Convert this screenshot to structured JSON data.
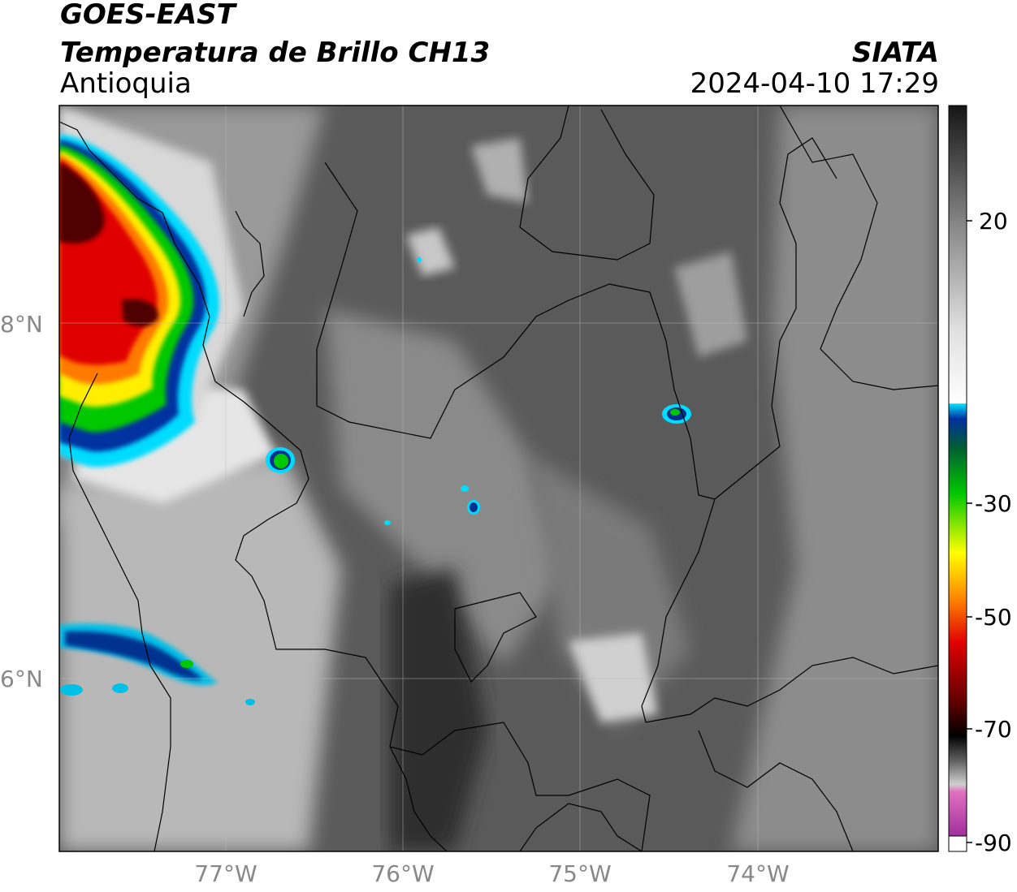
{
  "header": {
    "satellite": "GOES-EAST",
    "product": "Temperatura de Brillo CH13",
    "region": "Antioquia",
    "agency": "SIATA",
    "datetime": "2024-04-10 17:29"
  },
  "map": {
    "lat_labels": [
      "8°N",
      "6°N"
    ],
    "lon_labels": [
      "77°W",
      "76°W",
      "75°W",
      "74°W"
    ]
  },
  "colorbar": {
    "ticks": [
      "20",
      "-30",
      "-50",
      "-70",
      "-90"
    ],
    "colors": {
      "warm_dark": "#151515",
      "white": "#f4f4f4",
      "cyan": "#00e0ff",
      "blue": "#0030a0",
      "green": "#00c800",
      "yellow": "#ffff00",
      "orange": "#ff8800",
      "red": "#e00000",
      "darkred": "#600000",
      "black": "#000000",
      "pink": "#e070c0",
      "purple": "#8a1a90"
    }
  }
}
